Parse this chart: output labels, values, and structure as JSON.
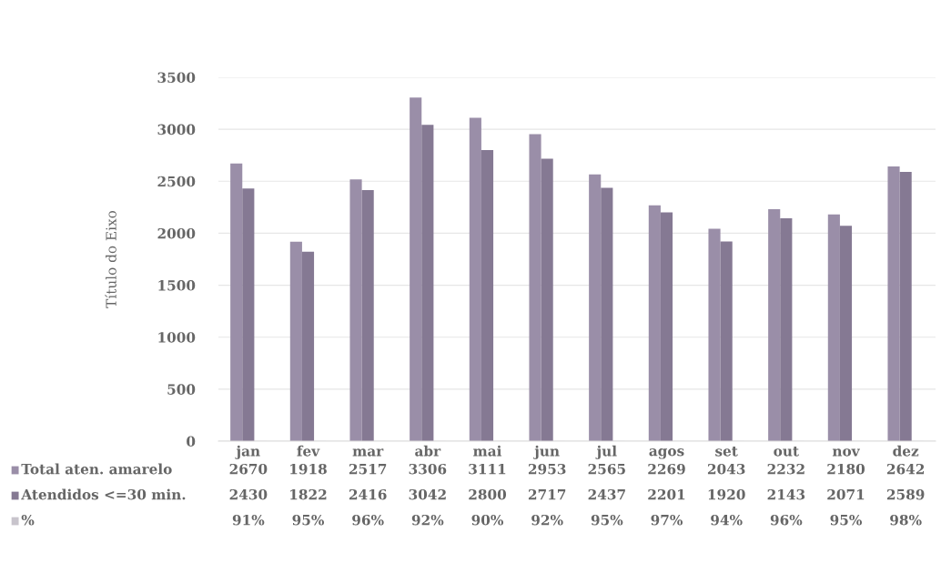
{
  "chart_data": {
    "type": "bar",
    "ylabel": "Título do Eixo",
    "categories": [
      "jan",
      "fev",
      "mar",
      "abr",
      "mai",
      "jun",
      "jul",
      "agos",
      "set",
      "out",
      "nov",
      "dez"
    ],
    "series": [
      {
        "name": "Total aten. amarelo",
        "color": "#9a8ea8",
        "values": [
          2670,
          1918,
          2517,
          3306,
          3111,
          2953,
          2565,
          2269,
          2043,
          2232,
          2180,
          2642
        ],
        "value_labels": [
          "2670",
          "1918",
          "2517",
          "3306",
          "3111",
          "2953",
          "2565",
          "2269",
          "2043",
          "2232",
          "2180",
          "2642"
        ]
      },
      {
        "name": "Atendidos <=30 min.",
        "color": "#857993",
        "values": [
          2430,
          1822,
          2416,
          3042,
          2800,
          2717,
          2437,
          2201,
          1920,
          2143,
          2071,
          2589
        ],
        "value_labels": [
          "2430",
          "1822",
          "2416",
          "3042",
          "2800",
          "2717",
          "2437",
          "2201",
          "1920",
          "2143",
          "2071",
          "2589"
        ]
      },
      {
        "name": "%",
        "color": "#c8c4cc",
        "values": [
          0.91,
          0.95,
          0.96,
          0.92,
          0.9,
          0.92,
          0.95,
          0.97,
          0.94,
          0.96,
          0.95,
          0.98
        ],
        "value_labels": [
          "91%",
          "95%",
          "96%",
          "92%",
          "90%",
          "92%",
          "95%",
          "97%",
          "94%",
          "96%",
          "95%",
          "98%"
        ]
      }
    ],
    "ylim": [
      0,
      3500
    ],
    "yticks": [
      0,
      500,
      1000,
      1500,
      2000,
      2500,
      3000,
      3500
    ],
    "grid": "y",
    "legend": "bottom left"
  }
}
